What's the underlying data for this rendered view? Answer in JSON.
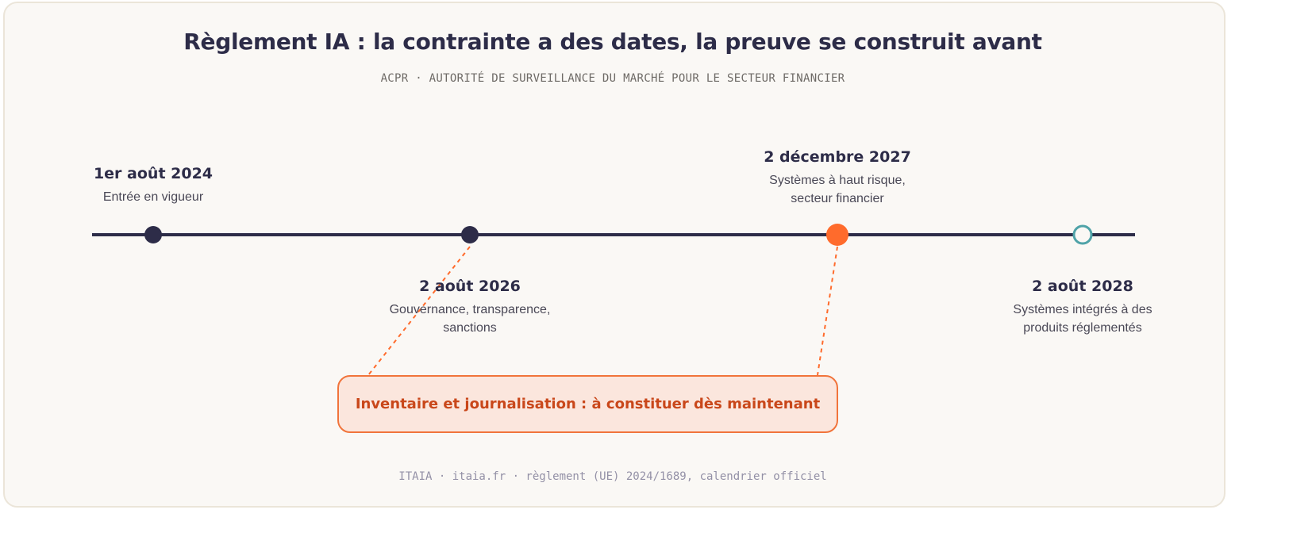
{
  "title": "Règlement IA : la contrainte a des dates, la preuve se construit avant",
  "subtitle": "ACPR · AUTORITÉ DE SURVEILLANCE DU MARCHÉ POUR LE SECTEUR FINANCIER",
  "milestones": [
    {
      "date": "1er août 2024",
      "description": "Entrée en vigueur",
      "style": "filled-dark",
      "label_side": "above"
    },
    {
      "date": "2 août 2026",
      "description": "Gouvernance, transparence, sanctions",
      "style": "filled-dark",
      "label_side": "below"
    },
    {
      "date": "2 décembre 2027",
      "description": "Systèmes à haut risque, secteur financier",
      "style": "filled-orange",
      "label_side": "above"
    },
    {
      "date": "2 août 2028",
      "description": "Systèmes intégrés à des produits réglementés",
      "style": "hollow-teal",
      "label_side": "below"
    }
  ],
  "callout": {
    "text": "Inventaire et journalisation : à constituer dès maintenant"
  },
  "footer": "ITAIA · itaia.fr · règlement (UE) 2024/1689, calendrier officiel",
  "colors": {
    "line": "#2d2c48",
    "dark": "#2d2c48",
    "orange": "#ff6b2c",
    "teal": "#4fa3a8",
    "callout_border": "#f1743b",
    "callout_text": "#c9471a"
  }
}
